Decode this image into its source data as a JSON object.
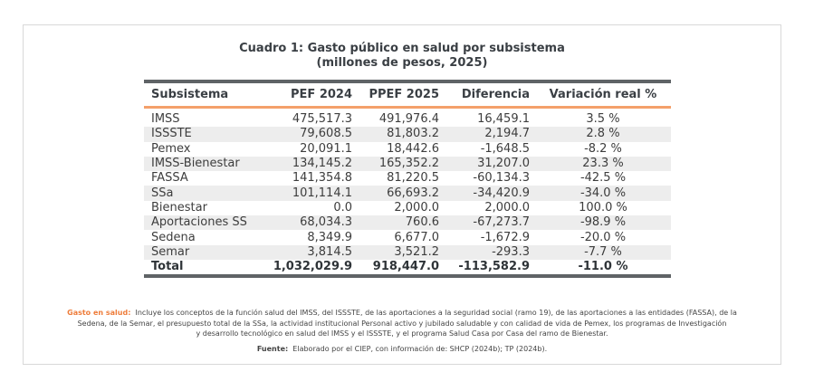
{
  "title": {
    "line1": "Cuadro 1: Gasto público en salud por subsistema",
    "line2": "(millones de pesos, 2025)"
  },
  "table": {
    "headers": [
      "Subsistema",
      "PEF 2024",
      "PPEF 2025",
      "Diferencia",
      "Variación real %"
    ],
    "rows": [
      [
        "IMSS",
        "475,517.3",
        "491,976.4",
        "16,459.1",
        "3.5 %"
      ],
      [
        "ISSSTE",
        "79,608.5",
        "81,803.2",
        "2,194.7",
        "2.8 %"
      ],
      [
        "Pemex",
        "20,091.1",
        "18,442.6",
        "-1,648.5",
        "-8.2 %"
      ],
      [
        "IMSS-Bienestar",
        "134,145.2",
        "165,352.2",
        "31,207.0",
        "23.3 %"
      ],
      [
        "FASSA",
        "141,354.8",
        "81,220.5",
        "-60,134.3",
        "-42.5 %"
      ],
      [
        "SSa",
        "101,114.1",
        "66,693.2",
        "-34,420.9",
        "-34.0 %"
      ],
      [
        "Bienestar",
        "0.0",
        "2,000.0",
        "2,000.0",
        "100.0 %"
      ],
      [
        "Aportaciones SS",
        "68,034.3",
        "760.6",
        "-67,273.7",
        "-98.9 %"
      ],
      [
        "Sedena",
        "8,349.9",
        "6,677.0",
        "-1,672.9",
        "-20.0 %"
      ],
      [
        "Semar",
        "3,814.5",
        "3,521.2",
        "-293.3",
        "-7.7 %"
      ]
    ],
    "total": [
      "Total",
      "1,032,029.9",
      "918,447.0",
      "-113,582.9",
      "-11.0 %"
    ]
  },
  "notes": {
    "gasto_label": "Gasto en salud:",
    "gasto_text_1": "Incluye los conceptos de la función salud del IMSS, del ISSSTE, de las aportaciones a la seguridad social (ramo 19), de las aportaciones a las entidades (FASSA), de la",
    "gasto_text_2": "Sedena, de la Semar, el presupuesto total de la SSa, la actividad institucional Personal activo y jubilado saludable y con calidad de vida de Pemex, los programas de Investigación",
    "gasto_text_3": "y desarrollo tecnológico en salud del IMSS y el ISSSTE, y el programa Salud Casa por Casa del ramo de Bienestar.",
    "fuente_label": "Fuente:",
    "fuente_text": "Elaborado por el CIEP, con información de: SHCP (2024b); TP (2024b)."
  },
  "colors": {
    "accent_orange": "#ee7d3b",
    "header_rule_orange": "#f4a06a",
    "rule_dark": "#5f6366",
    "stripe": "#ededed"
  }
}
